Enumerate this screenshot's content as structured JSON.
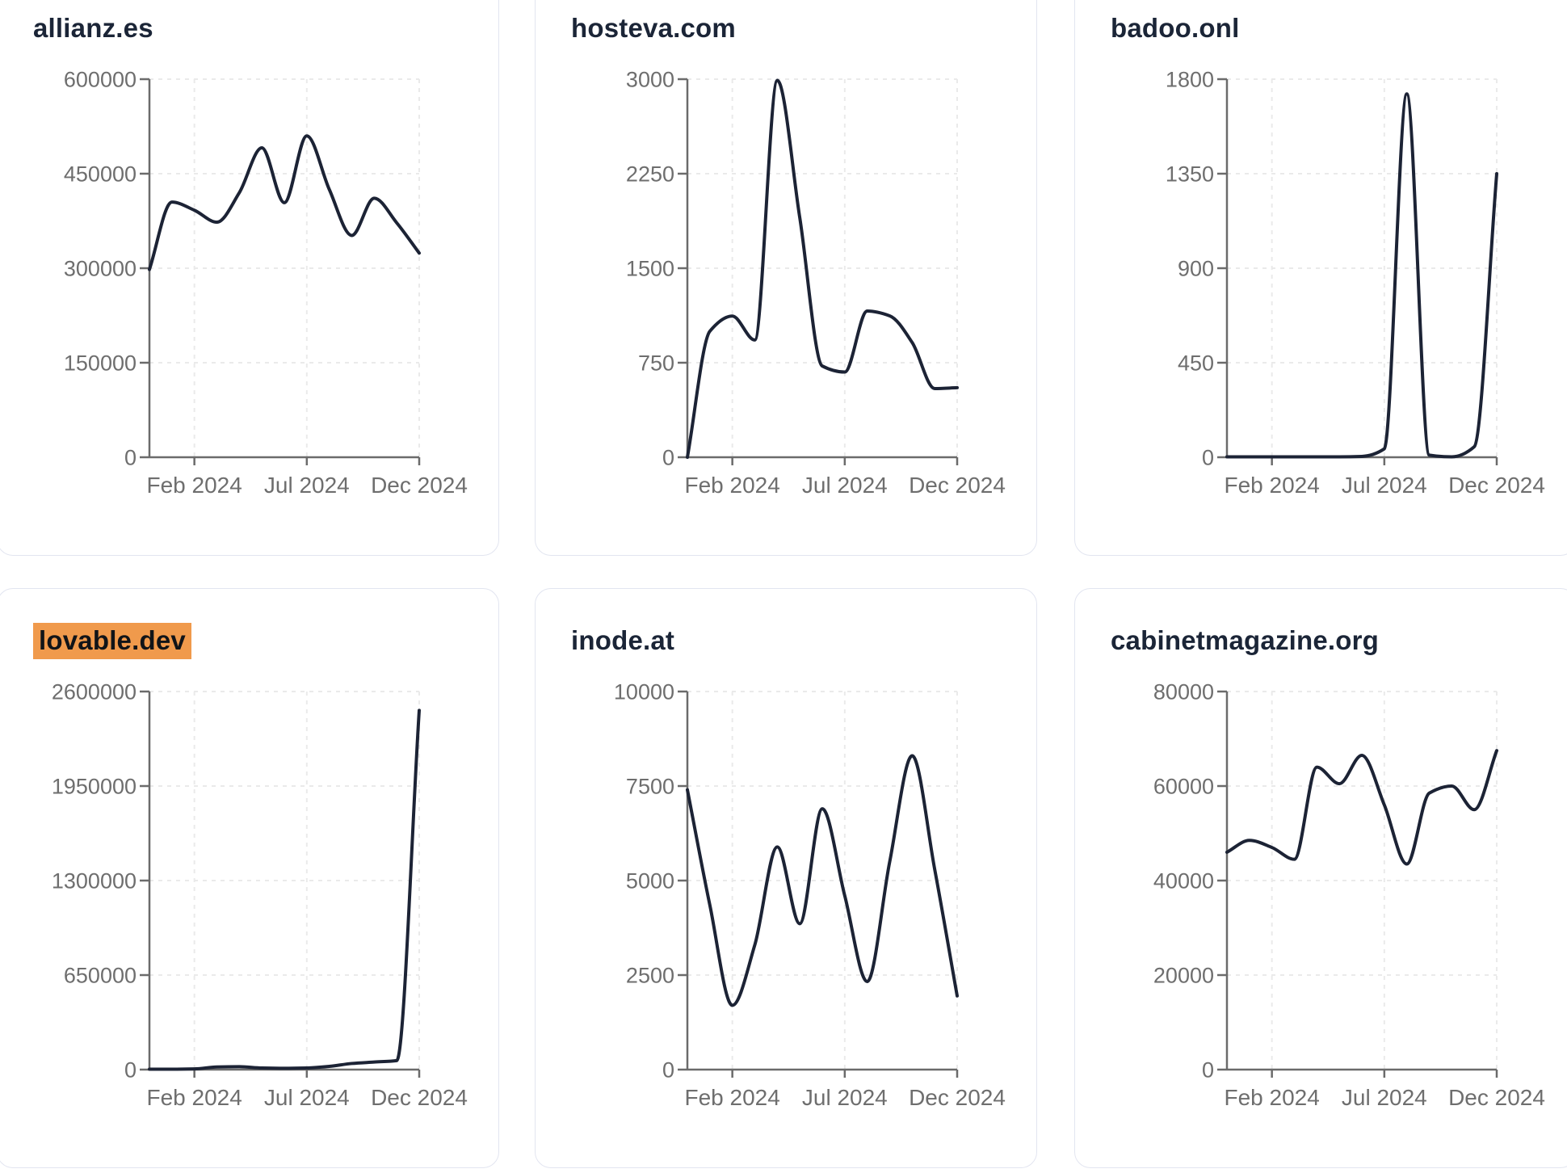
{
  "x_axis": {
    "months": [
      "Dec 2023",
      "Jan 2024",
      "Feb 2024",
      "Mar 2024",
      "Apr 2024",
      "May 2024",
      "Jun 2024",
      "Jul 2024",
      "Aug 2024",
      "Sep 2024",
      "Oct 2024",
      "Nov 2024",
      "Dec 2024"
    ],
    "tick_labels": [
      "Feb 2024",
      "Jul 2024",
      "Dec 2024"
    ],
    "tick_month_indices": [
      2,
      7,
      12
    ]
  },
  "colors": {
    "line": "#1c2335",
    "axis": "#6b6b6b",
    "tick_label": "#6e6e6e",
    "title": "#1b2537",
    "grid": "#eaeaea",
    "highlight_bg": "#f09a4c",
    "highlight_text": "#111418",
    "card_border": "#e2e5f0",
    "card_bg": "#ffffff",
    "page_bg": "#ffffff"
  },
  "chart_data": [
    {
      "type": "line",
      "title": "allianz.es",
      "title_highlighted": false,
      "x": [
        "Dec 2023",
        "Jan 2024",
        "Feb 2024",
        "Mar 2024",
        "Apr 2024",
        "May 2024",
        "Jun 2024",
        "Jul 2024",
        "Aug 2024",
        "Sep 2024",
        "Oct 2024",
        "Nov 2024",
        "Dec 2024"
      ],
      "values": [
        298000,
        405000,
        392000,
        373000,
        420000,
        491000,
        404000,
        510000,
        425000,
        352000,
        411000,
        372000,
        324000
      ],
      "ylim": [
        0,
        600000
      ],
      "y_ticks": [
        0,
        150000,
        300000,
        450000,
        600000
      ],
      "x_tick_labels": [
        "Feb 2024",
        "Jul 2024",
        "Dec 2024"
      ],
      "grid": "dashed",
      "legend": "none"
    },
    {
      "type": "line",
      "title": "hosteva.com",
      "title_highlighted": false,
      "x": [
        "Dec 2023",
        "Jan 2024",
        "Feb 2024",
        "Mar 2024",
        "Apr 2024",
        "May 2024",
        "Jun 2024",
        "Jul 2024",
        "Aug 2024",
        "Sep 2024",
        "Oct 2024",
        "Nov 2024",
        "Dec 2024"
      ],
      "values": [
        0,
        1000,
        1120,
        930,
        2990,
        1900,
        724,
        676,
        1160,
        1122,
        910,
        545,
        552
      ],
      "ylim": [
        0,
        3000
      ],
      "y_ticks": [
        0,
        750,
        1500,
        2250,
        3000
      ],
      "x_tick_labels": [
        "Feb 2024",
        "Jul 2024",
        "Dec 2024"
      ],
      "grid": "dashed",
      "legend": "none"
    },
    {
      "type": "line",
      "title": "badoo.onl",
      "title_highlighted": false,
      "x": [
        "Dec 2023",
        "Jan 2024",
        "Feb 2024",
        "Mar 2024",
        "Apr 2024",
        "May 2024",
        "Jun 2024",
        "Jul 2024",
        "Aug 2024",
        "Sep 2024",
        "Oct 2024",
        "Nov 2024",
        "Dec 2024"
      ],
      "values": [
        2,
        2,
        2,
        2,
        2,
        2,
        4,
        40,
        1730,
        10,
        2,
        50,
        1350
      ],
      "ylim": [
        0,
        1800
      ],
      "y_ticks": [
        0,
        450,
        900,
        1350,
        1800
      ],
      "x_tick_labels": [
        "Feb 2024",
        "Jul 2024",
        "Dec 2024"
      ],
      "grid": "dashed",
      "legend": "none"
    },
    {
      "type": "line",
      "title": "lovable.dev",
      "title_highlighted": true,
      "x": [
        "Dec 2023",
        "Jan 2024",
        "Feb 2024",
        "Mar 2024",
        "Apr 2024",
        "May 2024",
        "Jun 2024",
        "Jul 2024",
        "Aug 2024",
        "Sep 2024",
        "Oct 2024",
        "Nov 2024",
        "Dec 2024"
      ],
      "values": [
        3000,
        3000,
        5000,
        18000,
        20000,
        11000,
        9000,
        11000,
        22000,
        42000,
        52000,
        62000,
        2470000
      ],
      "ylim": [
        0,
        2600000
      ],
      "y_ticks": [
        0,
        650000,
        1300000,
        1950000,
        2600000
      ],
      "x_tick_labels": [
        "Feb 2024",
        "Jul 2024",
        "Dec 2024"
      ],
      "grid": "dashed",
      "legend": "none"
    },
    {
      "type": "line",
      "title": "inode.at",
      "title_highlighted": false,
      "x": [
        "Dec 2023",
        "Jan 2024",
        "Feb 2024",
        "Mar 2024",
        "Apr 2024",
        "May 2024",
        "Jun 2024",
        "Jul 2024",
        "Aug 2024",
        "Sep 2024",
        "Oct 2024",
        "Nov 2024",
        "Dec 2024"
      ],
      "values": [
        7400,
        4350,
        1700,
        3300,
        5890,
        3860,
        6900,
        4600,
        2330,
        5500,
        8300,
        5300,
        1950
      ],
      "ylim": [
        0,
        10000
      ],
      "y_ticks": [
        0,
        2500,
        5000,
        7500,
        10000
      ],
      "x_tick_labels": [
        "Feb 2024",
        "Jul 2024",
        "Dec 2024"
      ],
      "grid": "dashed",
      "legend": "none"
    },
    {
      "type": "line",
      "title": "cabinetmagazine.org",
      "title_highlighted": false,
      "x": [
        "Dec 2023",
        "Jan 2024",
        "Feb 2024",
        "Mar 2024",
        "Apr 2024",
        "May 2024",
        "Jun 2024",
        "Jul 2024",
        "Aug 2024",
        "Sep 2024",
        "Oct 2024",
        "Nov 2024",
        "Dec 2024"
      ],
      "values": [
        46000,
        48500,
        47000,
        44500,
        64000,
        60500,
        66500,
        56000,
        43500,
        58500,
        60000,
        55000,
        67500
      ],
      "ylim": [
        0,
        80000
      ],
      "y_ticks": [
        0,
        20000,
        40000,
        60000,
        80000
      ],
      "x_tick_labels": [
        "Feb 2024",
        "Jul 2024",
        "Dec 2024"
      ],
      "grid": "dashed",
      "legend": "none"
    }
  ]
}
